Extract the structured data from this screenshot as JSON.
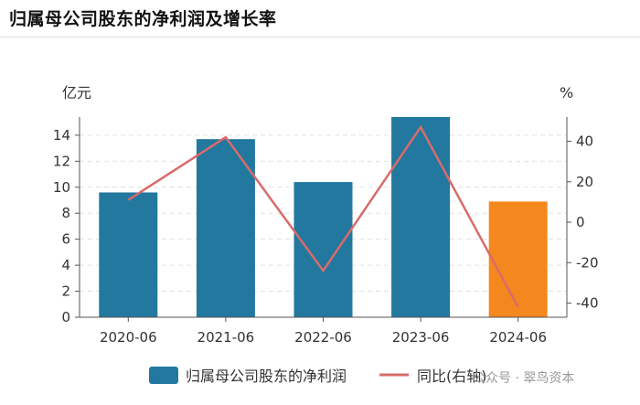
{
  "header": {
    "title": "归属母公司股东的净利润及增长率"
  },
  "watermark": "公众号 · 翠鸟资本",
  "chart_data": {
    "type": "bar",
    "categories": [
      "2020-06",
      "2021-06",
      "2022-06",
      "2023-06",
      "2024-06"
    ],
    "series": [
      {
        "name": "归属母公司股东的净利润",
        "type": "bar",
        "axis": "left",
        "values": [
          9.6,
          13.7,
          10.4,
          15.4,
          8.9
        ],
        "colors": [
          "#22789e",
          "#22789e",
          "#22789e",
          "#22789e",
          "#f5871f"
        ]
      },
      {
        "name": "同比(右轴)",
        "type": "line",
        "axis": "right",
        "color": "#d96b6b",
        "values": [
          11,
          42,
          -24,
          47,
          -42
        ]
      }
    ],
    "y_left": {
      "label": "亿元",
      "ylim": [
        0,
        15.4
      ],
      "ticks": [
        0,
        2,
        4,
        6,
        8,
        10,
        12,
        14
      ]
    },
    "y_right": {
      "label": "%",
      "ylim": [
        -47,
        52
      ],
      "ticks": [
        -40,
        -20,
        0,
        20,
        40
      ]
    },
    "grid": true,
    "legend_position": "bottom"
  }
}
